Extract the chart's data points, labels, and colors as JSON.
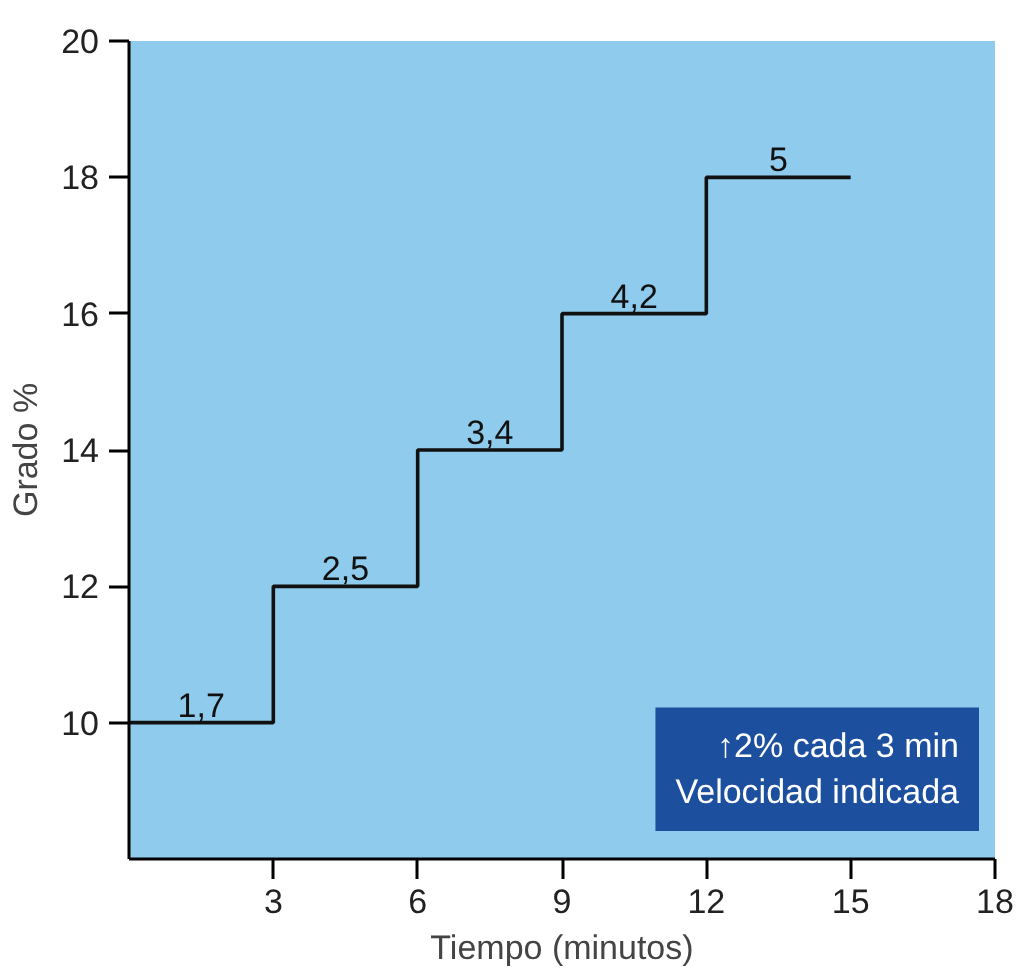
{
  "chart_data": {
    "type": "step",
    "xlabel": "Tiempo (minutos)",
    "ylabel": "Grado %",
    "x": [
      0,
      3,
      6,
      9,
      12,
      15
    ],
    "values": [
      10,
      12,
      14,
      16,
      18,
      18
    ],
    "color": "#111111",
    "xlim": [
      0,
      18
    ],
    "xticks": [
      3,
      6,
      9,
      12,
      15,
      18
    ],
    "ylim": [
      8,
      20
    ],
    "yticks": [
      10,
      12,
      14,
      16,
      18,
      20
    ],
    "grid": false,
    "annotations": [
      {
        "text": "1,7",
        "x": 1.5,
        "y": 10
      },
      {
        "text": "2,5",
        "x": 4.5,
        "y": 12
      },
      {
        "text": "3,4",
        "x": 7.5,
        "y": 14
      },
      {
        "text": "4,2",
        "x": 10.5,
        "y": 16
      },
      {
        "text": "5",
        "x": 13.5,
        "y": 18
      },
      "↑2% cada 3 min\nVelocidad indicada"
    ]
  }
}
